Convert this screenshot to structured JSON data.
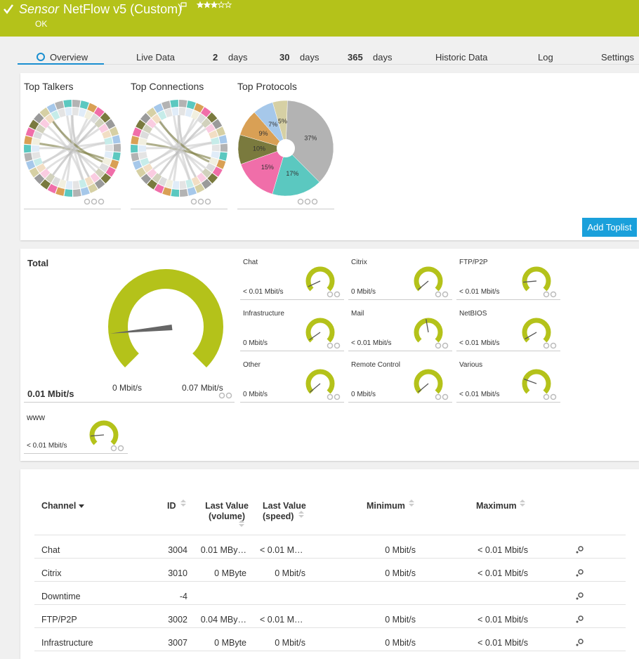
{
  "header": {
    "prefix": "Sensor",
    "title": "NetFlow v5 (Custom)",
    "status": "OK"
  },
  "tabs": [
    {
      "label": "Overview"
    },
    {
      "label": "Live Data"
    },
    {
      "number": 2,
      "label": "days"
    },
    {
      "number": 30,
      "label": "days"
    },
    {
      "number": 365,
      "label": "days"
    },
    {
      "label": "Historic Data"
    },
    {
      "label": "Log"
    },
    {
      "label": "Settings"
    }
  ],
  "toplists": {
    "talkers": {
      "title": "Top Talkers"
    },
    "connections": {
      "title": "Top Connections"
    },
    "protocols": {
      "type": "pie",
      "title": "Top Protocols",
      "values": [
        37,
        17,
        15,
        10,
        9,
        7,
        5
      ],
      "value_labels": [
        "37%",
        "17%",
        "15%",
        "10%",
        "9%",
        "7%",
        "5%"
      ],
      "colors": [
        "#b3b3b3",
        "#5bc8c0",
        "#f06ea9",
        "#7a7a3e",
        "#d9a055",
        "#a6c8ea",
        "#d6d0a4"
      ]
    },
    "add_button": "Add Toplist"
  },
  "gauges": {
    "total": {
      "name": "Total",
      "value": "0.01 Mbit/s",
      "min": "0 Mbit/s",
      "max": "0.07 Mbit/s"
    },
    "channels": [
      {
        "name": "Chat",
        "value": "< 0.01 Mbit/s"
      },
      {
        "name": "Citrix",
        "value": "0 Mbit/s"
      },
      {
        "name": "FTP/P2P",
        "value": "< 0.01 Mbit/s"
      },
      {
        "name": "Infrastructure",
        "value": "0 Mbit/s"
      },
      {
        "name": "Mail",
        "value": "< 0.01 Mbit/s"
      },
      {
        "name": "NetBIOS",
        "value": "< 0.01 Mbit/s"
      },
      {
        "name": "Other",
        "value": "0 Mbit/s"
      },
      {
        "name": "Remote Control",
        "value": "0 Mbit/s"
      },
      {
        "name": "Various",
        "value": "< 0.01 Mbit/s"
      },
      {
        "name": "www",
        "value": "< 0.01 Mbit/s"
      }
    ]
  },
  "table": {
    "headers": [
      "Channel",
      "ID",
      "Last Value (volume)",
      "Last Value (speed)",
      "Minimum",
      "Maximum"
    ],
    "rows": [
      [
        "Chat",
        3004,
        "0.01 MBy…",
        "< 0.01 M…",
        "0 Mbit/s",
        "< 0.01 Mbit/s"
      ],
      [
        "Citrix",
        3010,
        "0 MByte",
        "0 Mbit/s",
        "0 Mbit/s",
        "< 0.01 Mbit/s"
      ],
      [
        "Downtime",
        -4,
        null,
        null,
        null,
        null
      ],
      [
        "FTP/P2P",
        3002,
        "0.04 MBy…",
        "< 0.01 M…",
        "0 Mbit/s",
        "< 0.01 Mbit/s"
      ],
      [
        "Infrastructure",
        3007,
        "0 MByte",
        "0 Mbit/s",
        "0 Mbit/s",
        "< 0.01 Mbit/s"
      ]
    ]
  }
}
